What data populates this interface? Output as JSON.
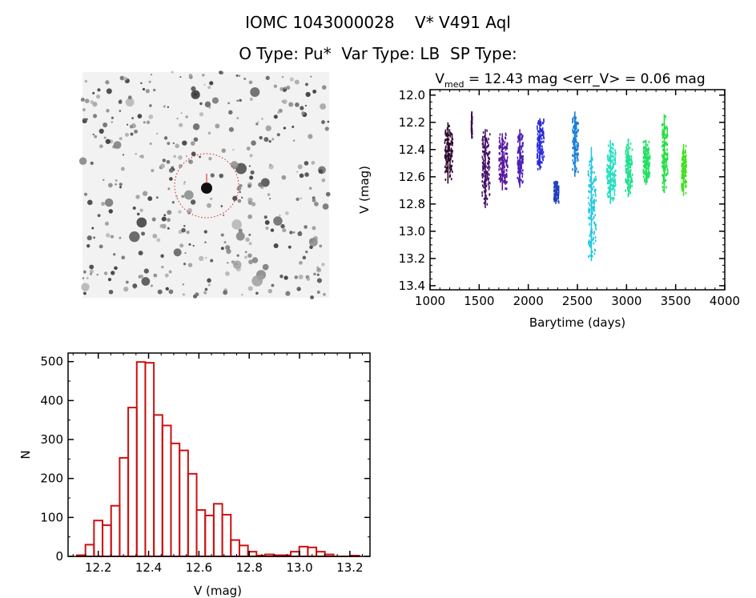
{
  "header": {
    "title_line1": "IOMC 1043000028    V* V491 Aql",
    "title_line2": "O Type: Pu*  Var Type: LB  SP Type:"
  },
  "image_panel": {
    "type": "star-field-image",
    "marker_color": "#cc2222"
  },
  "chart_data": [
    {
      "type": "scatter",
      "title_prefix": "V",
      "title_sub": "med",
      "title_rest": " = 12.43 mag <err_V> = 0.06 mag",
      "xlabel": "Barytime (days)",
      "ylabel": "V (mag)",
      "xlim": [
        1000,
        4000
      ],
      "ylim": [
        11.96,
        13.43
      ],
      "y_inverted": true,
      "xticks": [
        "1000",
        "1500",
        "2000",
        "2500",
        "3000",
        "3500",
        "4000"
      ],
      "yticks": [
        "12.0",
        "12.2",
        "12.4",
        "12.6",
        "12.8",
        "13.0",
        "13.2",
        "13.4"
      ],
      "grid": false,
      "segments": [
        {
          "t": [
            1150,
            1230
          ],
          "v": [
            12.2,
            12.65
          ],
          "color": "#300a30"
        },
        {
          "t": [
            1420,
            1430
          ],
          "v": [
            12.12,
            12.32
          ],
          "color": "#3a0c48"
        },
        {
          "t": [
            1530,
            1610
          ],
          "v": [
            12.25,
            12.83
          ],
          "color": "#45106a"
        },
        {
          "t": [
            1700,
            1790
          ],
          "v": [
            12.28,
            12.7
          ],
          "color": "#5a1aa0"
        },
        {
          "t": [
            1890,
            1950
          ],
          "v": [
            12.25,
            12.68
          ],
          "color": "#4a20b8"
        },
        {
          "t": [
            2090,
            2160
          ],
          "v": [
            12.17,
            12.55
          ],
          "color": "#2a2ae0"
        },
        {
          "t": [
            2260,
            2310
          ],
          "v": [
            12.63,
            12.8
          ],
          "color": "#2040c0"
        },
        {
          "t": [
            2450,
            2510
          ],
          "v": [
            12.12,
            12.6
          ],
          "color": "#1a80d8"
        },
        {
          "t": [
            2610,
            2690
          ],
          "v": [
            12.38,
            13.22
          ],
          "color": "#20c8e0"
        },
        {
          "t": [
            2800,
            2890
          ],
          "v": [
            12.33,
            12.8
          ],
          "color": "#20e0c0"
        },
        {
          "t": [
            2990,
            3060
          ],
          "v": [
            12.32,
            12.75
          ],
          "color": "#20e090"
        },
        {
          "t": [
            3170,
            3240
          ],
          "v": [
            12.33,
            12.66
          ],
          "color": "#20e060"
        },
        {
          "t": [
            3360,
            3420
          ],
          "v": [
            12.14,
            12.72
          ],
          "color": "#20e040"
        },
        {
          "t": [
            3560,
            3610
          ],
          "v": [
            12.36,
            12.74
          ],
          "color": "#40e020"
        }
      ]
    },
    {
      "type": "bar",
      "subtype": "histogram",
      "xlabel": "V (mag)",
      "ylabel": "N",
      "xlim": [
        12.08,
        13.28
      ],
      "ylim": [
        0,
        522
      ],
      "xticks": [
        "12.2",
        "12.4",
        "12.6",
        "12.8",
        "13.0",
        "13.2"
      ],
      "yticks": [
        "0",
        "100",
        "200",
        "300",
        "400",
        "500"
      ],
      "bin_start": 12.115,
      "bin_width": 0.034,
      "values": [
        3,
        30,
        92,
        80,
        130,
        253,
        382,
        499,
        497,
        363,
        336,
        290,
        272,
        212,
        119,
        105,
        135,
        107,
        42,
        28,
        12,
        2,
        5,
        3,
        3,
        12,
        25,
        23,
        12,
        5,
        0,
        0,
        2
      ],
      "bar_color": "#cc1111",
      "grid": false
    }
  ]
}
